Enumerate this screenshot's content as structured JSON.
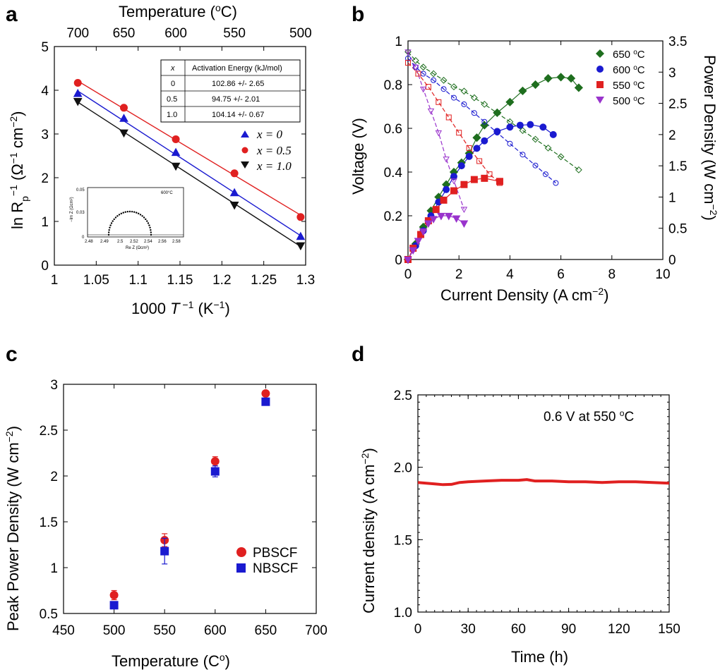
{
  "panels": {
    "a": {
      "letter": "a"
    },
    "b": {
      "letter": "b"
    },
    "c": {
      "letter": "c"
    },
    "d": {
      "letter": "d"
    }
  },
  "chart_data": [
    {
      "id": "a",
      "type": "scatter",
      "xlabel_pre": "1000 ",
      "xlabel_T": "T",
      "xlabel_sup": " −1",
      "xlabel_post": " (K",
      "xlabel_sup2": "−1",
      "xlabel_end": ")",
      "ylabel_main": "ln R",
      "ylabel_sub": "p",
      "ylabel_sup": "−1",
      "ylabel_units": " (Ω",
      "ylabel_units_sup": "−1",
      "ylabel_units2": " cm",
      "ylabel_units2_sup": "−2",
      "ylabel_end": ")",
      "top_label": "Temperature (",
      "top_label_deg": "o",
      "top_label_end": "C)",
      "xlim": [
        1,
        1.3
      ],
      "ylim": [
        0,
        5
      ],
      "x_ticks": [
        "1",
        "1.05",
        "1.1",
        "1.15",
        "1.2",
        "1.25",
        "1.3"
      ],
      "y_ticks": [
        "0",
        "1",
        "2",
        "3",
        "4",
        "5"
      ],
      "top_ticks": [
        {
          "label": "700",
          "x": 1.028
        },
        {
          "label": "650",
          "x": 1.083
        },
        {
          "label": "600",
          "x": 1.145
        },
        {
          "label": "550",
          "x": 1.215
        },
        {
          "label": "500",
          "x": 1.294
        }
      ],
      "series": [
        {
          "name": "x = 0",
          "color": "#1a1ad0",
          "marker": "triangle-up",
          "x": [
            1.028,
            1.083,
            1.145,
            1.215,
            1.294
          ],
          "y": [
            3.92,
            3.35,
            2.57,
            1.65,
            0.65
          ]
        },
        {
          "name": "x = 0.5",
          "color": "#e02020",
          "marker": "circle",
          "x": [
            1.028,
            1.083,
            1.145,
            1.215,
            1.294
          ],
          "y": [
            4.17,
            3.6,
            2.88,
            2.1,
            1.1
          ]
        },
        {
          "name": "x = 1.0",
          "color": "#111111",
          "marker": "triangle-down",
          "x": [
            1.028,
            1.083,
            1.145,
            1.215,
            1.294
          ],
          "y": [
            3.75,
            3.03,
            2.27,
            1.38,
            0.45
          ]
        }
      ],
      "legend_texts": [
        "x = 0",
        "x = 0.5",
        "x = 1.0"
      ],
      "table": {
        "headers": [
          "x",
          "Activation Energy (kJ/mol)"
        ],
        "rows": [
          [
            "0",
            "102.86 +/- 2.65"
          ],
          [
            "0.5",
            "94.75 +/- 2.01"
          ],
          [
            "1.0",
            "104.14 +/- 0.67"
          ]
        ]
      },
      "inset": {
        "temp_label": "600°C",
        "xlabel": "Re Z (Ωcm²)",
        "ylabel": "−Im Z (Ωcm²)",
        "x_ticks": [
          "2.48",
          "2.49",
          "2.5",
          "2.52",
          "2.54",
          "2.56",
          "2.58"
        ],
        "y_ticks": [
          "0",
          "0.03",
          "0.05"
        ]
      }
    },
    {
      "id": "b",
      "type": "line",
      "xlabel": "Current Density (A cm",
      "xlabel_sup": "−2",
      "xlabel_end": ")",
      "ylabel": "Voltage (V)",
      "ylabel_right": "Power Density (W cm",
      "ylabel_right_sup": "−2",
      "ylabel_right_end": ")",
      "xlim": [
        0,
        10
      ],
      "ylim": [
        0,
        1
      ],
      "ylim_right": [
        0,
        3.5
      ],
      "x_ticks": [
        "0",
        "2",
        "4",
        "6",
        "8",
        "10"
      ],
      "y_ticks": [
        "0",
        "0.2",
        "0.4",
        "0.6",
        "0.8",
        "1"
      ],
      "y_ticks_right": [
        "0",
        "0.5",
        "1",
        "1.5",
        "2",
        "2.5",
        "3",
        "3.5"
      ],
      "series": [
        {
          "name": "650 oC",
          "temp": "650",
          "color": "#1e6e1e",
          "marker": "diamond",
          "voltage_x": [
            0,
            0.3,
            0.6,
            1.0,
            1.4,
            1.8,
            2.2,
            2.6,
            3.0,
            3.5,
            4.0,
            4.5,
            5.0,
            5.5,
            6.0,
            6.7
          ],
          "voltage_y": [
            0.95,
            0.91,
            0.88,
            0.85,
            0.82,
            0.79,
            0.77,
            0.74,
            0.71,
            0.67,
            0.63,
            0.59,
            0.55,
            0.51,
            0.47,
            0.41
          ],
          "power_x": [
            0,
            0.3,
            0.6,
            0.9,
            1.2,
            1.5,
            1.8,
            2.1,
            2.4,
            2.7,
            3.0,
            3.5,
            4.0,
            4.5,
            5.0,
            5.5,
            6.0,
            6.4,
            6.7
          ],
          "power_y": [
            0,
            0.25,
            0.52,
            0.78,
            1.0,
            1.2,
            1.4,
            1.55,
            1.7,
            1.95,
            2.15,
            2.35,
            2.52,
            2.7,
            2.8,
            2.9,
            2.92,
            2.9,
            2.75
          ]
        },
        {
          "name": "600 oC",
          "temp": "600",
          "color": "#1a1ad0",
          "marker": "circle",
          "voltage_x": [
            0,
            0.3,
            0.6,
            1.0,
            1.4,
            1.8,
            2.2,
            2.6,
            3.0,
            3.5,
            4.0,
            4.5,
            5.0,
            5.4,
            5.8
          ],
          "voltage_y": [
            0.92,
            0.88,
            0.85,
            0.82,
            0.78,
            0.74,
            0.71,
            0.67,
            0.63,
            0.58,
            0.53,
            0.48,
            0.43,
            0.39,
            0.35
          ],
          "power_x": [
            0,
            0.3,
            0.6,
            0.9,
            1.2,
            1.5,
            1.8,
            2.1,
            2.4,
            2.7,
            3.0,
            3.5,
            4.0,
            4.4,
            4.8,
            5.3,
            5.7
          ],
          "power_y": [
            0,
            0.22,
            0.46,
            0.7,
            0.92,
            1.12,
            1.33,
            1.5,
            1.65,
            1.78,
            1.9,
            2.05,
            2.12,
            2.15,
            2.16,
            2.12,
            2.0
          ]
        },
        {
          "name": "550 oC",
          "temp": "550",
          "color": "#e02020",
          "marker": "square",
          "voltage_x": [
            0,
            0.4,
            0.8,
            1.2,
            1.6,
            2.0,
            2.4,
            2.8,
            3.2,
            3.6
          ],
          "voltage_y": [
            0.9,
            0.85,
            0.79,
            0.72,
            0.65,
            0.58,
            0.51,
            0.45,
            0.39,
            0.35
          ],
          "power_x": [
            0,
            0.2,
            0.5,
            0.8,
            1.1,
            1.4,
            1.8,
            2.2,
            2.6,
            3.0,
            3.6
          ],
          "power_y": [
            0,
            0.18,
            0.4,
            0.62,
            0.8,
            0.95,
            1.1,
            1.2,
            1.28,
            1.3,
            1.25
          ]
        },
        {
          "name": "500 oC",
          "temp": "500",
          "color": "#9933cc",
          "marker": "triangle-down",
          "voltage_x": [
            0,
            0.3,
            0.6,
            0.9,
            1.2,
            1.5,
            1.8,
            2.2
          ],
          "voltage_y": [
            0.95,
            0.88,
            0.78,
            0.68,
            0.58,
            0.46,
            0.36,
            0.23
          ],
          "power_x": [
            0,
            0.2,
            0.4,
            0.6,
            0.8,
            1.0,
            1.3,
            1.6,
            1.9,
            2.2
          ],
          "power_y": [
            0,
            0.15,
            0.3,
            0.45,
            0.58,
            0.65,
            0.7,
            0.7,
            0.66,
            0.58
          ]
        }
      ],
      "legend_unit": "C"
    },
    {
      "id": "c",
      "type": "scatter",
      "xlabel": "Temperature (C",
      "xlabel_sup": "o",
      "xlabel_end": ")",
      "ylabel": "Peak Power Density (W cm",
      "ylabel_sup": "−2",
      "ylabel_end": ")",
      "xlim": [
        450,
        700
      ],
      "ylim": [
        0.5,
        3
      ],
      "x_ticks": [
        "450",
        "500",
        "550",
        "600",
        "650",
        "700"
      ],
      "y_ticks": [
        "0.5",
        "1",
        "1.5",
        "2",
        "2.5",
        "3"
      ],
      "series": [
        {
          "name": "PBSCF",
          "color": "#e02020",
          "marker": "circle",
          "x": [
            500,
            550,
            600,
            650
          ],
          "y": [
            0.7,
            1.3,
            2.16,
            2.9
          ],
          "err": [
            0.05,
            0.07,
            0.05,
            0.0
          ]
        },
        {
          "name": "NBSCF",
          "color": "#1a1ad0",
          "marker": "square",
          "x": [
            500,
            550,
            600,
            650
          ],
          "y": [
            0.59,
            1.18,
            2.05,
            2.81
          ],
          "err": [
            0.03,
            0.14,
            0.06,
            0.02
          ]
        }
      ]
    },
    {
      "id": "d",
      "type": "line",
      "xlabel": "Time (h)",
      "ylabel": "Current density (A cm",
      "ylabel_sup": "−2",
      "ylabel_end": ")",
      "annotation": "0.6 V at 550 ",
      "annotation_deg": "o",
      "annotation_end": "C",
      "xlim": [
        0,
        150
      ],
      "ylim": [
        1.0,
        2.5
      ],
      "x_ticks": [
        "0",
        "30",
        "60",
        "90",
        "120",
        "150"
      ],
      "y_ticks": [
        "1.0",
        "1.5",
        "2.0",
        "2.5"
      ],
      "series": [
        {
          "name": "current",
          "color": "#e02020",
          "x": [
            0,
            5,
            10,
            15,
            20,
            25,
            30,
            40,
            50,
            60,
            65,
            70,
            80,
            90,
            100,
            110,
            120,
            130,
            140,
            150
          ],
          "y": [
            1.895,
            1.89,
            1.885,
            1.88,
            1.882,
            1.895,
            1.9,
            1.905,
            1.91,
            1.91,
            1.915,
            1.905,
            1.905,
            1.9,
            1.9,
            1.895,
            1.9,
            1.9,
            1.895,
            1.89
          ]
        }
      ]
    }
  ]
}
